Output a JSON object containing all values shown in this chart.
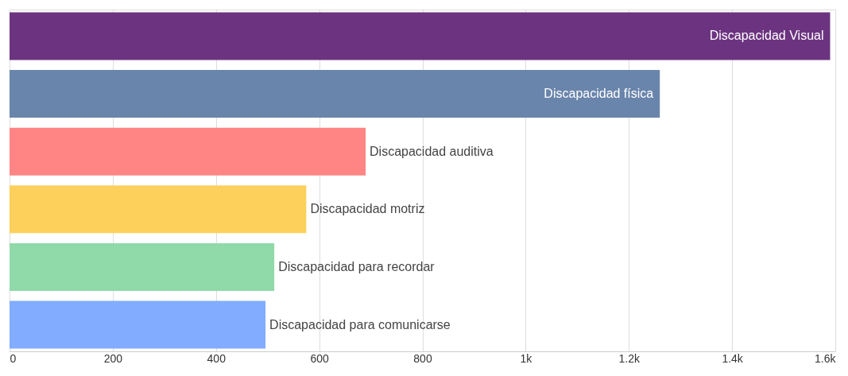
{
  "chart_data": {
    "type": "bar",
    "orientation": "horizontal",
    "categories": [
      "Discapacidad Visual",
      "Discapacidad física",
      "Discapacidad auditiva",
      "Discapacidad motriz",
      "Discapacidad para recordar",
      "Discapacidad para comunicarse"
    ],
    "values": [
      1590,
      1260,
      690,
      575,
      513,
      496
    ],
    "colors": [
      "#6c3480",
      "#6a85ab",
      "#ff8585",
      "#fdd05c",
      "#90d9a8",
      "#82acff"
    ],
    "xlim": [
      0,
      1600
    ],
    "xticks": [
      0,
      200,
      400,
      600,
      800,
      {
        "value": 1000,
        "label": "1k"
      },
      {
        "value": 1200,
        "label": "1.2k"
      },
      {
        "value": 1400,
        "label": "1.4k"
      },
      {
        "value": 1600,
        "label": "1.6k"
      }
    ],
    "grid": "x",
    "legend": false,
    "tick_labels": "x"
  }
}
